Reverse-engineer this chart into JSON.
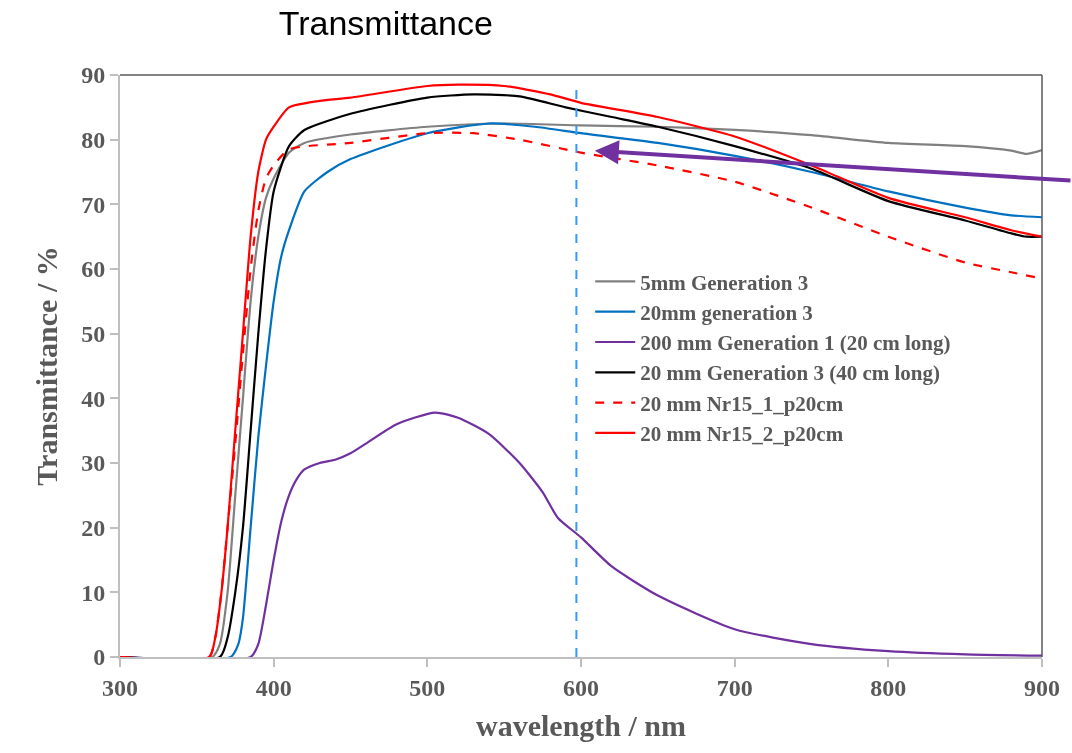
{
  "chart_data": {
    "type": "line",
    "title": "Transmittance",
    "xlabel": "wavelength / nm",
    "ylabel": "Transmittance / %",
    "xlim": [
      300,
      900
    ],
    "xticks": [
      300,
      400,
      500,
      600,
      700,
      800,
      900
    ],
    "ylim": [
      0,
      90
    ],
    "yticks": [
      0,
      10,
      20,
      30,
      40,
      50,
      60,
      70,
      80,
      90
    ],
    "legend": "right",
    "marker": "none",
    "ref_lines": [
      {
        "axis": "x",
        "value": 597,
        "color": "#3399ff",
        "line_style": "dashed"
      }
    ],
    "series": [
      {
        "name": "5mm Generation 3",
        "color": "#808080",
        "line_style": "solid",
        "x": [
          300,
          360,
          365,
          370,
          375,
          380,
          385,
          390,
          395,
          400,
          410,
          420,
          450,
          500,
          550,
          600,
          650,
          700,
          750,
          800,
          850,
          880,
          890,
          900
        ],
        "values": [
          0,
          0,
          2,
          10,
          25,
          40,
          55,
          65,
          71,
          74,
          78,
          79.5,
          80.8,
          82,
          82.5,
          82.2,
          82,
          81.5,
          80.7,
          79.5,
          79,
          78.3,
          77.8,
          78.4
        ]
      },
      {
        "name": "20mm generation 3",
        "color": "#0070c0",
        "line_style": "solid",
        "x": [
          300,
          372,
          377,
          380,
          385,
          390,
          395,
          400,
          405,
          410,
          420,
          435,
          450,
          500,
          540,
          570,
          600,
          650,
          700,
          750,
          800,
          850,
          880,
          900
        ],
        "values": [
          0,
          0,
          2,
          6,
          20,
          34,
          45,
          55,
          62,
          66,
          72,
          75,
          77,
          81,
          82.5,
          82,
          81,
          79.5,
          77.5,
          75,
          72,
          69.5,
          68.3,
          68
        ]
      },
      {
        "name": "200 mm Generation 1 (20 cm long)",
        "color": "#7030a0",
        "line_style": "solid",
        "x": [
          300,
          385,
          390,
          395,
          400,
          405,
          410,
          415,
          420,
          430,
          440,
          450,
          460,
          480,
          505,
          520,
          540,
          560,
          575,
          585,
          600,
          620,
          650,
          700,
          750,
          800,
          850,
          900
        ],
        "values": [
          0,
          0,
          2,
          8,
          15,
          21,
          25,
          27.5,
          29,
          30,
          30.5,
          31.5,
          33,
          36,
          37.8,
          37,
          34.5,
          30,
          25.5,
          21.5,
          18.5,
          14,
          9.5,
          4.3,
          2,
          0.9,
          0.4,
          0.2
        ]
      },
      {
        "name": "20 mm Generation 3 (40 cm long)",
        "color": "#000000",
        "line_style": "solid",
        "x": [
          300,
          365,
          370,
          375,
          380,
          385,
          390,
          395,
          400,
          410,
          420,
          450,
          500,
          530,
          560,
          590,
          620,
          650,
          700,
          750,
          800,
          850,
          880,
          890,
          900
        ],
        "values": [
          0,
          0,
          3,
          10,
          20,
          35,
          50,
          63,
          72,
          79,
          81.5,
          84,
          86.5,
          87,
          86.7,
          85,
          83.5,
          82,
          79,
          75.5,
          70.5,
          67.5,
          65.5,
          65,
          65
        ]
      },
      {
        "name": "20 mm Nr15_1_p20cm",
        "color": "#ff0000",
        "line_style": "dashed",
        "x": [
          300,
          358,
          362,
          366,
          370,
          375,
          380,
          385,
          390,
          395,
          400,
          410,
          450,
          500,
          530,
          560,
          600,
          650,
          700,
          750,
          800,
          850,
          880,
          900
        ],
        "values": [
          0,
          0,
          3,
          10,
          20,
          33,
          47,
          60,
          69,
          74,
          76,
          78.5,
          79.5,
          81,
          81,
          80,
          78,
          76,
          73.5,
          69.5,
          65,
          61,
          59.5,
          58.5
        ]
      },
      {
        "name": "20 mm Nr15_2_p20cm",
        "color": "#ff0000",
        "line_style": "solid",
        "x": [
          300,
          358,
          362,
          366,
          370,
          375,
          380,
          385,
          390,
          395,
          400,
          410,
          430,
          450,
          500,
          520,
          550,
          580,
          600,
          650,
          700,
          750,
          800,
          850,
          880,
          900
        ],
        "values": [
          0,
          0,
          3,
          10,
          20,
          35,
          50,
          65,
          75,
          80,
          82,
          85,
          86,
          86.5,
          88.3,
          88.5,
          88.3,
          87,
          85.7,
          83.5,
          80.5,
          76,
          71,
          68,
          66,
          65
        ]
      }
    ]
  }
}
